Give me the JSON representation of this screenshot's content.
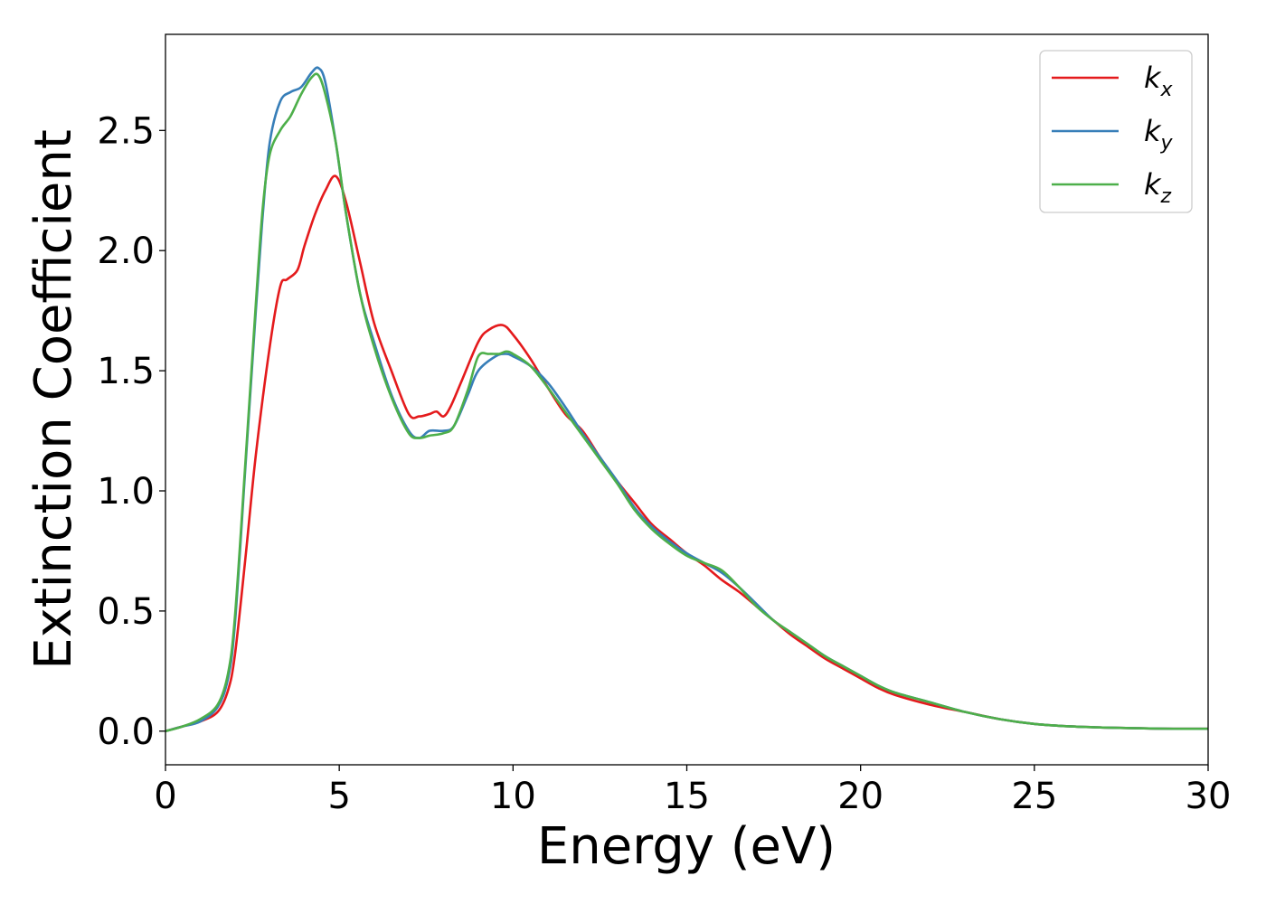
{
  "chart_data": {
    "type": "line",
    "xlabel": "Energy (eV)",
    "ylabel": "Extinction Coefficient",
    "xlim": [
      0,
      30
    ],
    "ylim": [
      -0.14,
      2.9
    ],
    "xticks": [
      0,
      5,
      10,
      15,
      20,
      25,
      30
    ],
    "xtick_labels": [
      "0",
      "5",
      "10",
      "15",
      "20",
      "25",
      "30"
    ],
    "yticks": [
      0.0,
      0.5,
      1.0,
      1.5,
      2.0,
      2.5
    ],
    "ytick_labels": [
      "0.0",
      "0.5",
      "1.0",
      "1.5",
      "2.0",
      "2.5"
    ],
    "grid": false,
    "legend_position": "top-right",
    "series": [
      {
        "name": "k",
        "subscript": "x",
        "color": "#e41a1c",
        "x": [
          0,
          0.5,
          1.0,
          1.5,
          1.8,
          2.0,
          2.3,
          2.6,
          3.0,
          3.3,
          3.5,
          3.8,
          4.0,
          4.3,
          4.6,
          4.9,
          5.2,
          5.6,
          6.0,
          6.5,
          7.0,
          7.3,
          7.6,
          7.8,
          8.0,
          8.2,
          8.5,
          9.0,
          9.3,
          9.7,
          10.0,
          10.5,
          11.0,
          11.5,
          12.0,
          12.5,
          13.0,
          13.5,
          14.0,
          14.5,
          15.0,
          15.5,
          16.0,
          16.5,
          17.0,
          17.5,
          18.0,
          18.5,
          19.0,
          19.5,
          20.0,
          20.5,
          21.0,
          22.0,
          23.0,
          24.0,
          25.0,
          26.0,
          27.0,
          28.0,
          29.0,
          30.0
        ],
        "y": [
          0.0,
          0.02,
          0.04,
          0.08,
          0.17,
          0.32,
          0.72,
          1.15,
          1.6,
          1.85,
          1.88,
          1.92,
          2.02,
          2.15,
          2.25,
          2.31,
          2.2,
          1.95,
          1.7,
          1.5,
          1.32,
          1.31,
          1.32,
          1.33,
          1.31,
          1.35,
          1.45,
          1.62,
          1.67,
          1.69,
          1.65,
          1.55,
          1.43,
          1.32,
          1.25,
          1.14,
          1.04,
          0.95,
          0.86,
          0.8,
          0.74,
          0.69,
          0.63,
          0.58,
          0.52,
          0.46,
          0.4,
          0.35,
          0.3,
          0.26,
          0.22,
          0.18,
          0.15,
          0.11,
          0.08,
          0.05,
          0.03,
          0.02,
          0.015,
          0.012,
          0.01,
          0.01
        ]
      },
      {
        "name": "k",
        "subscript": "y",
        "color": "#377eb8",
        "x": [
          0,
          0.5,
          1.0,
          1.5,
          1.8,
          2.0,
          2.3,
          2.6,
          2.8,
          3.0,
          3.3,
          3.6,
          3.9,
          4.2,
          4.4,
          4.6,
          4.9,
          5.2,
          5.6,
          6.0,
          6.5,
          7.0,
          7.3,
          7.6,
          8.0,
          8.3,
          8.7,
          9.0,
          9.5,
          9.8,
          10.0,
          10.5,
          11.0,
          11.5,
          12.0,
          12.5,
          13.0,
          13.5,
          14.0,
          14.5,
          15.0,
          15.5,
          16.0,
          16.5,
          17.0,
          17.5,
          18.0,
          18.5,
          19.0,
          19.5,
          20.0,
          20.5,
          21.0,
          22.0,
          23.0,
          24.0,
          25.0,
          26.0,
          27.0,
          28.0,
          29.0,
          30.0
        ],
        "y": [
          0.0,
          0.02,
          0.04,
          0.1,
          0.22,
          0.45,
          1.1,
          1.75,
          2.15,
          2.45,
          2.62,
          2.66,
          2.68,
          2.74,
          2.76,
          2.7,
          2.45,
          2.15,
          1.82,
          1.62,
          1.4,
          1.25,
          1.22,
          1.25,
          1.25,
          1.27,
          1.4,
          1.5,
          1.56,
          1.57,
          1.56,
          1.52,
          1.45,
          1.35,
          1.24,
          1.14,
          1.04,
          0.93,
          0.85,
          0.79,
          0.74,
          0.7,
          0.66,
          0.6,
          0.53,
          0.46,
          0.41,
          0.36,
          0.31,
          0.27,
          0.23,
          0.19,
          0.16,
          0.12,
          0.08,
          0.05,
          0.03,
          0.02,
          0.015,
          0.012,
          0.01,
          0.01
        ]
      },
      {
        "name": "k",
        "subscript": "z",
        "color": "#4daf4a",
        "x": [
          0,
          0.5,
          1.0,
          1.5,
          1.8,
          2.0,
          2.3,
          2.6,
          2.8,
          3.0,
          3.3,
          3.6,
          3.9,
          4.2,
          4.4,
          4.6,
          4.9,
          5.2,
          5.6,
          6.0,
          6.5,
          7.0,
          7.3,
          7.6,
          8.0,
          8.3,
          8.7,
          9.0,
          9.3,
          9.6,
          9.8,
          10.0,
          10.5,
          11.0,
          11.5,
          12.0,
          12.5,
          13.0,
          13.5,
          14.0,
          14.5,
          15.0,
          15.5,
          16.0,
          16.5,
          17.0,
          17.5,
          18.0,
          18.5,
          19.0,
          19.5,
          20.0,
          20.5,
          21.0,
          22.0,
          23.0,
          24.0,
          25.0,
          26.0,
          27.0,
          28.0,
          29.0,
          30.0
        ],
        "y": [
          0.0,
          0.02,
          0.05,
          0.11,
          0.24,
          0.48,
          1.12,
          1.78,
          2.18,
          2.4,
          2.5,
          2.56,
          2.65,
          2.72,
          2.73,
          2.65,
          2.45,
          2.15,
          1.82,
          1.6,
          1.39,
          1.24,
          1.22,
          1.23,
          1.24,
          1.27,
          1.42,
          1.56,
          1.57,
          1.57,
          1.58,
          1.57,
          1.52,
          1.43,
          1.33,
          1.23,
          1.13,
          1.03,
          0.92,
          0.84,
          0.78,
          0.73,
          0.7,
          0.67,
          0.6,
          0.52,
          0.46,
          0.41,
          0.36,
          0.31,
          0.27,
          0.23,
          0.19,
          0.16,
          0.12,
          0.08,
          0.05,
          0.03,
          0.02,
          0.015,
          0.012,
          0.01,
          0.01
        ]
      }
    ]
  }
}
